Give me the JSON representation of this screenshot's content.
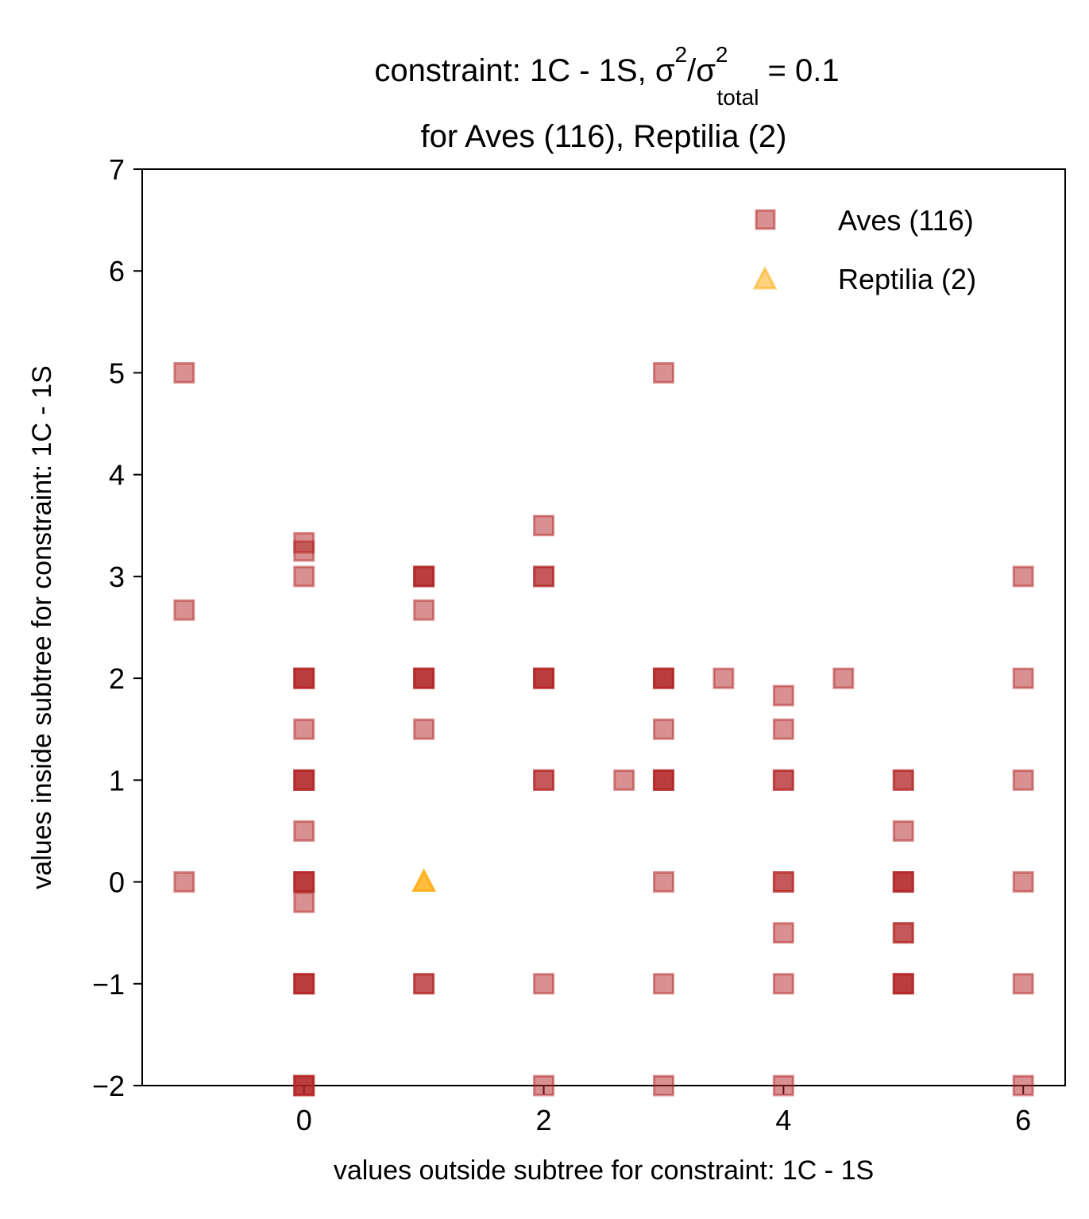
{
  "chart_data": {
    "type": "scatter",
    "title": {
      "line1_prefix": "constraint: 1C - 1S, σ",
      "line1_sup1": "2",
      "line1_mid": "/σ",
      "line1_sup2": "2",
      "line1_sub": "total",
      "line1_suffix": "  =  0.1",
      "line2": "for Aves (116), Reptilia (2)"
    },
    "xlabel": "values outside subtree for constraint: 1C - 1S",
    "ylabel": "values inside subtree for constraint: 1C - 1S",
    "xlim": [
      -1.35,
      6.35
    ],
    "ylim": [
      -2,
      7
    ],
    "xticks": [
      0,
      2,
      4,
      6
    ],
    "yticks": [
      -2,
      -1,
      0,
      1,
      2,
      3,
      4,
      5,
      6,
      7
    ],
    "xtick_labels": [
      "0",
      "2",
      "4",
      "6"
    ],
    "ytick_labels": [
      "−2",
      "−1",
      "0",
      "1",
      "2",
      "3",
      "4",
      "5",
      "6",
      "7"
    ],
    "grid": false,
    "legend_position": "upper right",
    "series": [
      {
        "name": "Aves (116)",
        "marker": "square",
        "color": "#b22222",
        "alpha": 0.5,
        "points": [
          [
            -1,
            5
          ],
          [
            -1,
            2.67
          ],
          [
            -1,
            0
          ],
          [
            0,
            3.33
          ],
          [
            0,
            3.25
          ],
          [
            0,
            3
          ],
          [
            0,
            2
          ],
          [
            0,
            2
          ],
          [
            0,
            2
          ],
          [
            0,
            1.5
          ],
          [
            0,
            1
          ],
          [
            0,
            1
          ],
          [
            0,
            1
          ],
          [
            0,
            0.5
          ],
          [
            0,
            0
          ],
          [
            0,
            0
          ],
          [
            0,
            0
          ],
          [
            0,
            -0.2
          ],
          [
            0,
            -1
          ],
          [
            0,
            -1
          ],
          [
            0,
            -1
          ],
          [
            0,
            -2
          ],
          [
            0,
            -2
          ],
          [
            0,
            -2
          ],
          [
            1,
            3
          ],
          [
            1,
            3
          ],
          [
            1,
            3
          ],
          [
            1,
            2.67
          ],
          [
            1,
            2
          ],
          [
            1,
            2
          ],
          [
            1,
            2
          ],
          [
            1,
            1.5
          ],
          [
            1,
            -1
          ],
          [
            1,
            -1
          ],
          [
            2,
            3.5
          ],
          [
            2,
            3
          ],
          [
            2,
            3
          ],
          [
            2,
            2
          ],
          [
            2,
            2
          ],
          [
            2,
            2
          ],
          [
            2,
            1
          ],
          [
            2,
            1
          ],
          [
            2,
            -1
          ],
          [
            2,
            -2
          ],
          [
            2.67,
            1
          ],
          [
            3,
            5
          ],
          [
            3,
            2
          ],
          [
            3,
            2
          ],
          [
            3,
            2
          ],
          [
            3,
            1.5
          ],
          [
            3,
            1
          ],
          [
            3,
            1
          ],
          [
            3,
            1
          ],
          [
            3,
            0
          ],
          [
            3,
            -1
          ],
          [
            3,
            -2
          ],
          [
            3.5,
            2
          ],
          [
            4,
            1.83
          ],
          [
            4,
            1.5
          ],
          [
            4,
            1
          ],
          [
            4,
            1
          ],
          [
            4,
            0
          ],
          [
            4,
            0
          ],
          [
            4,
            -0.5
          ],
          [
            4,
            -1
          ],
          [
            4,
            -2
          ],
          [
            4.5,
            2
          ],
          [
            5,
            1
          ],
          [
            5,
            1
          ],
          [
            5,
            0.5
          ],
          [
            5,
            0
          ],
          [
            5,
            0
          ],
          [
            5,
            0
          ],
          [
            5,
            -0.5
          ],
          [
            5,
            -0.5
          ],
          [
            5,
            -1
          ],
          [
            5,
            -1
          ],
          [
            5,
            -1
          ],
          [
            6,
            3
          ],
          [
            6,
            2
          ],
          [
            6,
            1
          ],
          [
            6,
            0
          ],
          [
            6,
            -1
          ],
          [
            6,
            -2
          ]
        ]
      },
      {
        "name": "Reptilia (2)",
        "marker": "triangle",
        "color": "#ffa500",
        "alpha": 0.5,
        "points": [
          [
            1,
            0
          ],
          [
            1,
            0
          ]
        ]
      }
    ]
  }
}
